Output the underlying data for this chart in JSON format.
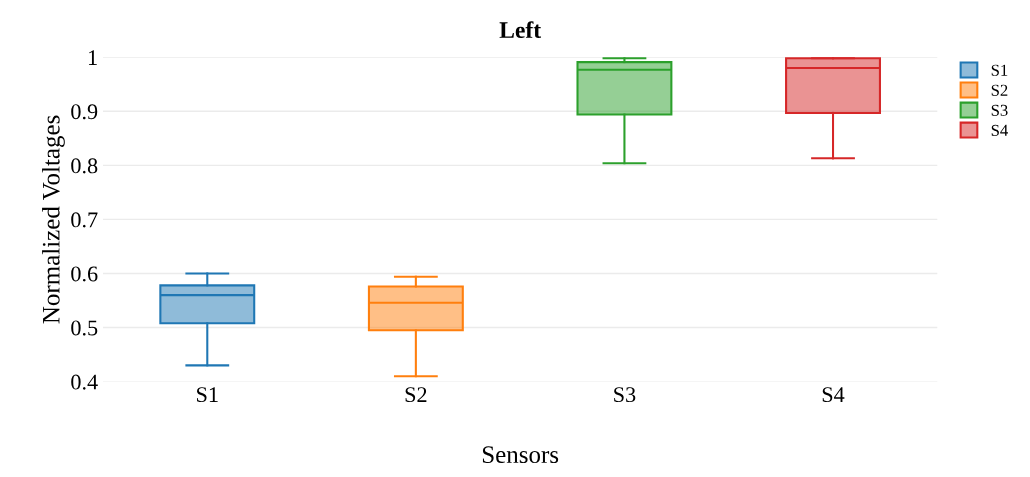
{
  "chart_data": {
    "type": "box",
    "title": "Left",
    "xlabel": "Sensors",
    "ylabel": "Normalized Voltages",
    "categories": [
      "S1",
      "S2",
      "S3",
      "S4"
    ],
    "series": [
      {
        "name": "S1",
        "color": "#1f77b4",
        "boxes": [
          {
            "low": 0.43,
            "q1": 0.508,
            "median": 0.56,
            "q3": 0.578,
            "high": 0.6
          },
          null,
          null,
          null
        ]
      },
      {
        "name": "S2",
        "color": "#ff7f0e",
        "boxes": [
          null,
          {
            "low": 0.41,
            "q1": 0.495,
            "median": 0.546,
            "q3": 0.576,
            "high": 0.594
          },
          null,
          null
        ]
      },
      {
        "name": "S3",
        "color": "#2ca02c",
        "boxes": [
          null,
          null,
          {
            "low": 0.804,
            "q1": 0.894,
            "median": 0.977,
            "q3": 0.991,
            "high": 0.998
          },
          null
        ]
      },
      {
        "name": "S4",
        "color": "#d62728",
        "boxes": [
          null,
          null,
          null,
          {
            "low": 0.813,
            "q1": 0.897,
            "median": 0.98,
            "q3": 0.998,
            "high": 0.998
          }
        ]
      }
    ],
    "ylim": [
      0.4,
      1
    ],
    "yticks": [
      0.4,
      0.5,
      0.6,
      0.7,
      0.8,
      0.9,
      1
    ],
    "grid": "y",
    "legend": "top right"
  }
}
